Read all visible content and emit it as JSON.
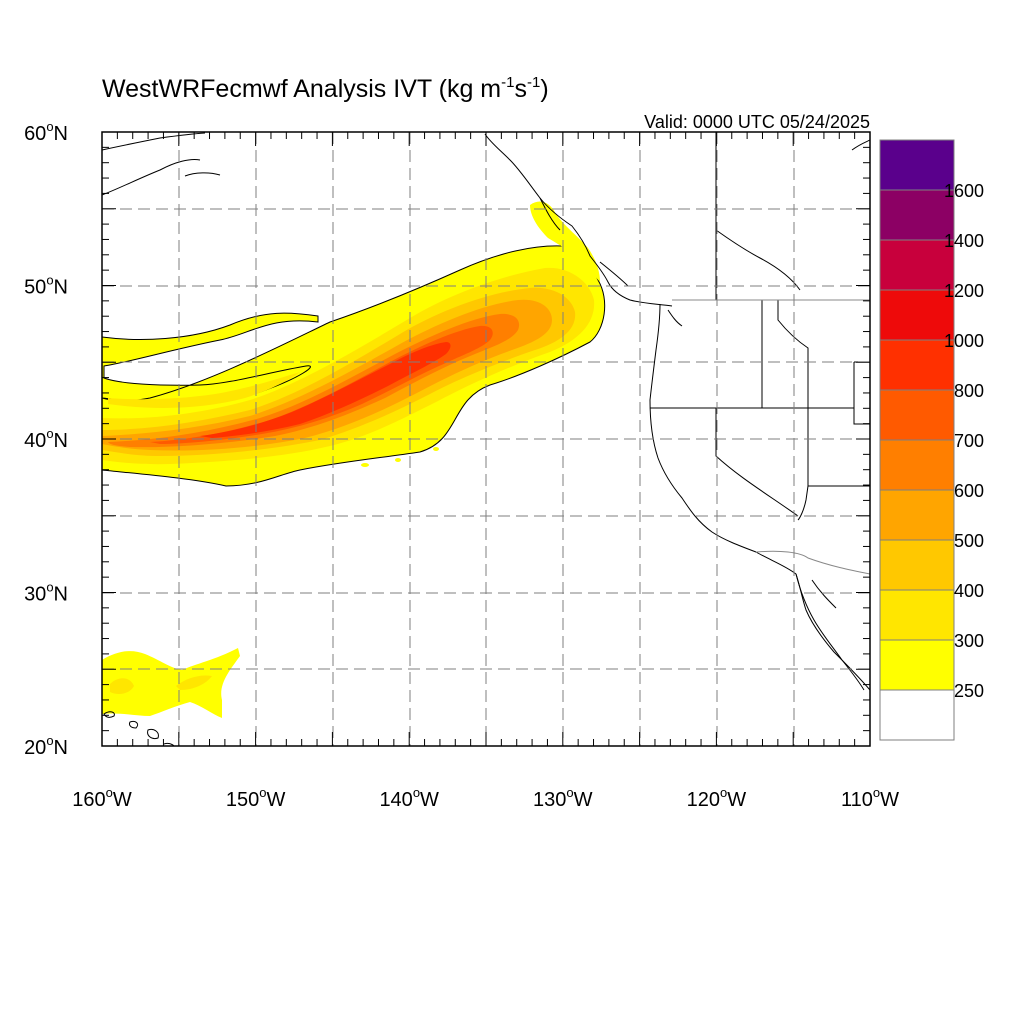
{
  "title_main": "WestWRFecmwf Analysis IVT (kg m",
  "title_sup1": "-1",
  "title_mid": "s",
  "title_sup2": "-1",
  "title_end": ")",
  "valid_label": "Valid: 0000 UTC 05/24/2025",
  "map": {
    "lon_range": [
      -160,
      -110
    ],
    "lat_range": [
      20,
      60
    ],
    "lon_ticks": [
      {
        "value": -160,
        "num": "160",
        "dir": "W"
      },
      {
        "value": -150,
        "num": "150",
        "dir": "W"
      },
      {
        "value": -140,
        "num": "140",
        "dir": "W"
      },
      {
        "value": -130,
        "num": "130",
        "dir": "W"
      },
      {
        "value": -120,
        "num": "120",
        "dir": "W"
      },
      {
        "value": -110,
        "num": "110",
        "dir": "W"
      }
    ],
    "lat_ticks": [
      {
        "value": 60,
        "num": "60",
        "dir": "N"
      },
      {
        "value": 50,
        "num": "50",
        "dir": "N"
      },
      {
        "value": 40,
        "num": "40",
        "dir": "N"
      },
      {
        "value": 30,
        "num": "30",
        "dir": "N"
      },
      {
        "value": 20,
        "num": "20",
        "dir": "N"
      }
    ],
    "grid": "dashed every 5 degrees"
  },
  "colorbar": {
    "levels": [
      {
        "label": "",
        "color": "#ffffff"
      },
      {
        "label": "250",
        "color": "#ffff00"
      },
      {
        "label": "300",
        "color": "#ffe600"
      },
      {
        "label": "400",
        "color": "#ffc800"
      },
      {
        "label": "500",
        "color": "#ffa500"
      },
      {
        "label": "600",
        "color": "#ff7f00"
      },
      {
        "label": "700",
        "color": "#ff5a00"
      },
      {
        "label": "800",
        "color": "#ff3000"
      },
      {
        "label": "1000",
        "color": "#ee0a0a"
      },
      {
        "label": "1200",
        "color": "#c8003c"
      },
      {
        "label": "1400",
        "color": "#8c0064"
      },
      {
        "label": "1600",
        "color": "#5a008c"
      }
    ]
  }
}
